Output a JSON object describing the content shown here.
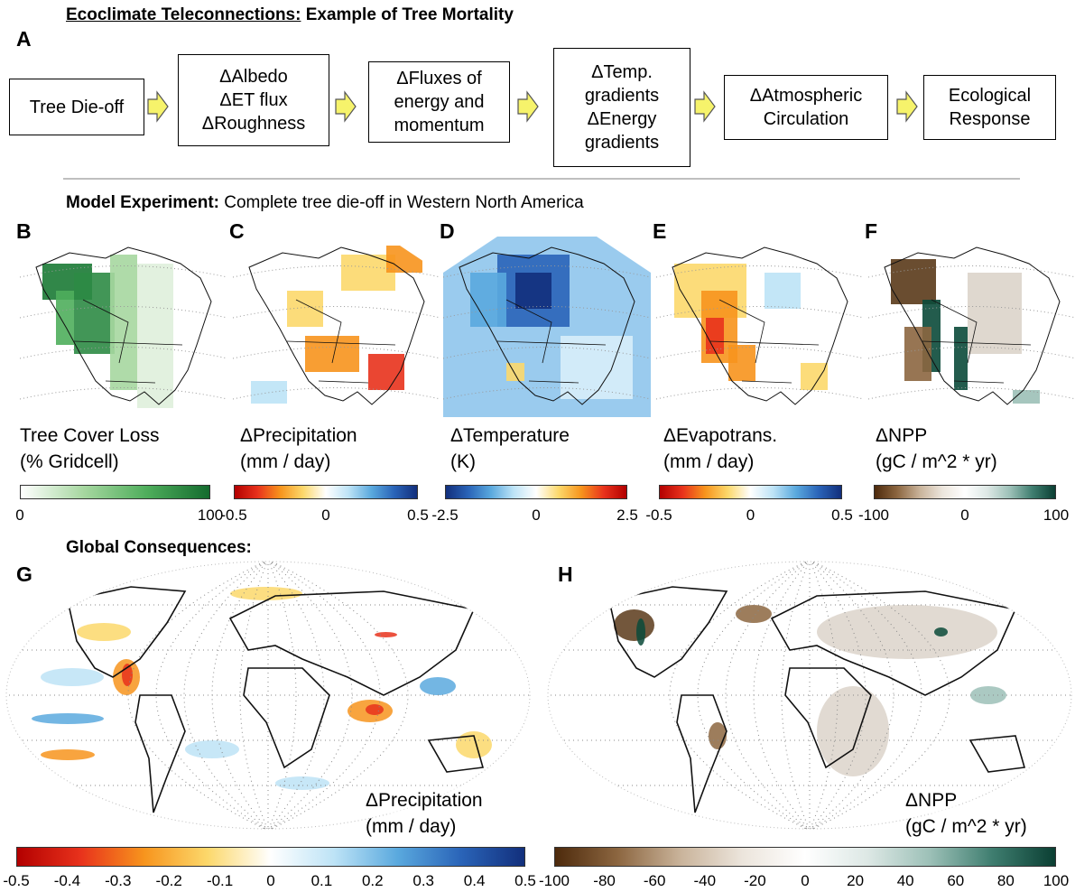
{
  "title": {
    "underlined": "Ecoclimate Teleconnections:",
    "rest": "Example of Tree Mortality"
  },
  "panel_a": {
    "letter": "A",
    "boxes": [
      {
        "lines": [
          "Tree Die-off"
        ]
      },
      {
        "lines": [
          "ΔAlbedo",
          "ΔET flux",
          "ΔRoughness"
        ]
      },
      {
        "lines": [
          "ΔFluxes of",
          "energy and",
          "momentum"
        ]
      },
      {
        "lines": [
          "ΔTemp.",
          "gradients",
          "ΔEnergy",
          "gradients"
        ]
      },
      {
        "lines": [
          "ΔAtmospheric",
          "Circulation"
        ]
      },
      {
        "lines": [
          "Ecological",
          "Response"
        ]
      }
    ]
  },
  "model_experiment": {
    "bold": "Model Experiment:",
    "rest": "Complete tree die-off in Western North America"
  },
  "panels": [
    {
      "letter": "B",
      "label": [
        "Tree Cover Loss",
        "(% Gridcell)"
      ],
      "ticks": [
        0,
        100
      ]
    },
    {
      "letter": "C",
      "label": [
        "ΔPrecipitation",
        "(mm / day)"
      ],
      "ticks": [
        -0.5,
        0,
        0.5
      ]
    },
    {
      "letter": "D",
      "label": [
        "ΔTemperature",
        "(K)"
      ],
      "ticks": [
        -2.5,
        0,
        2.5
      ]
    },
    {
      "letter": "E",
      "label": [
        "ΔEvapotrans.",
        "(mm / day)"
      ],
      "ticks": [
        -0.5,
        0,
        0.5
      ]
    },
    {
      "letter": "F",
      "label": [
        "ΔNPP",
        "(gC / m^2 * yr)"
      ],
      "ticks": [
        -100,
        0,
        100
      ]
    }
  ],
  "global_consequences": "Global Consequences:",
  "global_panels": [
    {
      "letter": "G",
      "label": [
        "ΔPrecipitation",
        "(mm / day)"
      ],
      "ticks": [
        -0.5,
        -0.4,
        -0.3,
        -0.2,
        -0.1,
        0,
        0.1,
        0.2,
        0.3,
        0.4,
        0.5
      ]
    },
    {
      "letter": "H",
      "label": [
        "ΔNPP",
        "(gC / m^2 * yr)"
      ],
      "ticks": [
        -100,
        -80,
        -60,
        -40,
        -20,
        0,
        20,
        40,
        60,
        80,
        100
      ]
    }
  ]
}
